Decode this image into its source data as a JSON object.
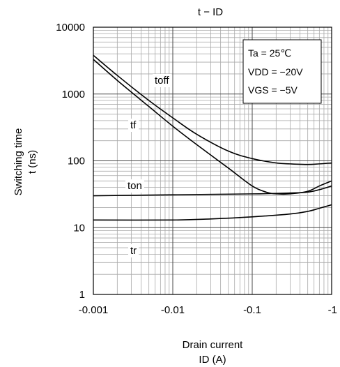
{
  "chart_data": {
    "type": "line",
    "title": "t − ID",
    "xlabel": [
      "Drain current",
      "ID (A)"
    ],
    "ylabel": [
      "Switching time",
      "t (ns)"
    ],
    "x_scale": "log",
    "y_scale": "log",
    "x_ticks": [
      {
        "value": 0.001,
        "label": "-0.001"
      },
      {
        "value": 0.01,
        "label": "-0.01"
      },
      {
        "value": 0.1,
        "label": "-0.1"
      },
      {
        "value": 1,
        "label": "-1"
      }
    ],
    "y_ticks": [
      {
        "value": 1,
        "label": "1"
      },
      {
        "value": 10,
        "label": "10"
      },
      {
        "value": 100,
        "label": "100"
      },
      {
        "value": 1000,
        "label": "1000"
      },
      {
        "value": 10000,
        "label": "10000"
      }
    ],
    "xlim": [
      -0.001,
      -1
    ],
    "ylim": [
      1,
      10000
    ],
    "grid": true,
    "annotation": [
      "Ta = 25℃",
      "VDD = −20V",
      "VGS = −5V"
    ],
    "series": [
      {
        "name": "toff",
        "x": [
          -0.001,
          -0.002,
          -0.005,
          -0.01,
          -0.02,
          -0.05,
          -0.1,
          -0.2,
          -0.3,
          -0.5,
          -0.7,
          -1
        ],
        "y": [
          3800,
          1900,
          800,
          440,
          250,
          140,
          108,
          93,
          90,
          88,
          90,
          93
        ]
      },
      {
        "name": "tf",
        "x": [
          -0.001,
          -0.002,
          -0.005,
          -0.01,
          -0.02,
          -0.05,
          -0.1,
          -0.15,
          -0.2,
          -0.3,
          -0.5,
          -0.7,
          -1
        ],
        "y": [
          3300,
          1600,
          650,
          330,
          175,
          78,
          42,
          34,
          32,
          32,
          35,
          42,
          50
        ]
      },
      {
        "name": "ton",
        "x": [
          -0.001,
          -0.01,
          -0.1,
          -0.3,
          -0.5,
          -0.7,
          -1
        ],
        "y": [
          30,
          31,
          32,
          33,
          34,
          37,
          42
        ]
      },
      {
        "name": "tr",
        "x": [
          -0.001,
          -0.01,
          -0.03,
          -0.1,
          -0.3,
          -0.5,
          -0.7,
          -1
        ],
        "y": [
          13,
          13,
          13.5,
          14.5,
          16,
          17.5,
          19.5,
          22
        ]
      }
    ],
    "curve_labels": [
      "toff",
      "tf",
      "ton",
      "tr"
    ]
  }
}
